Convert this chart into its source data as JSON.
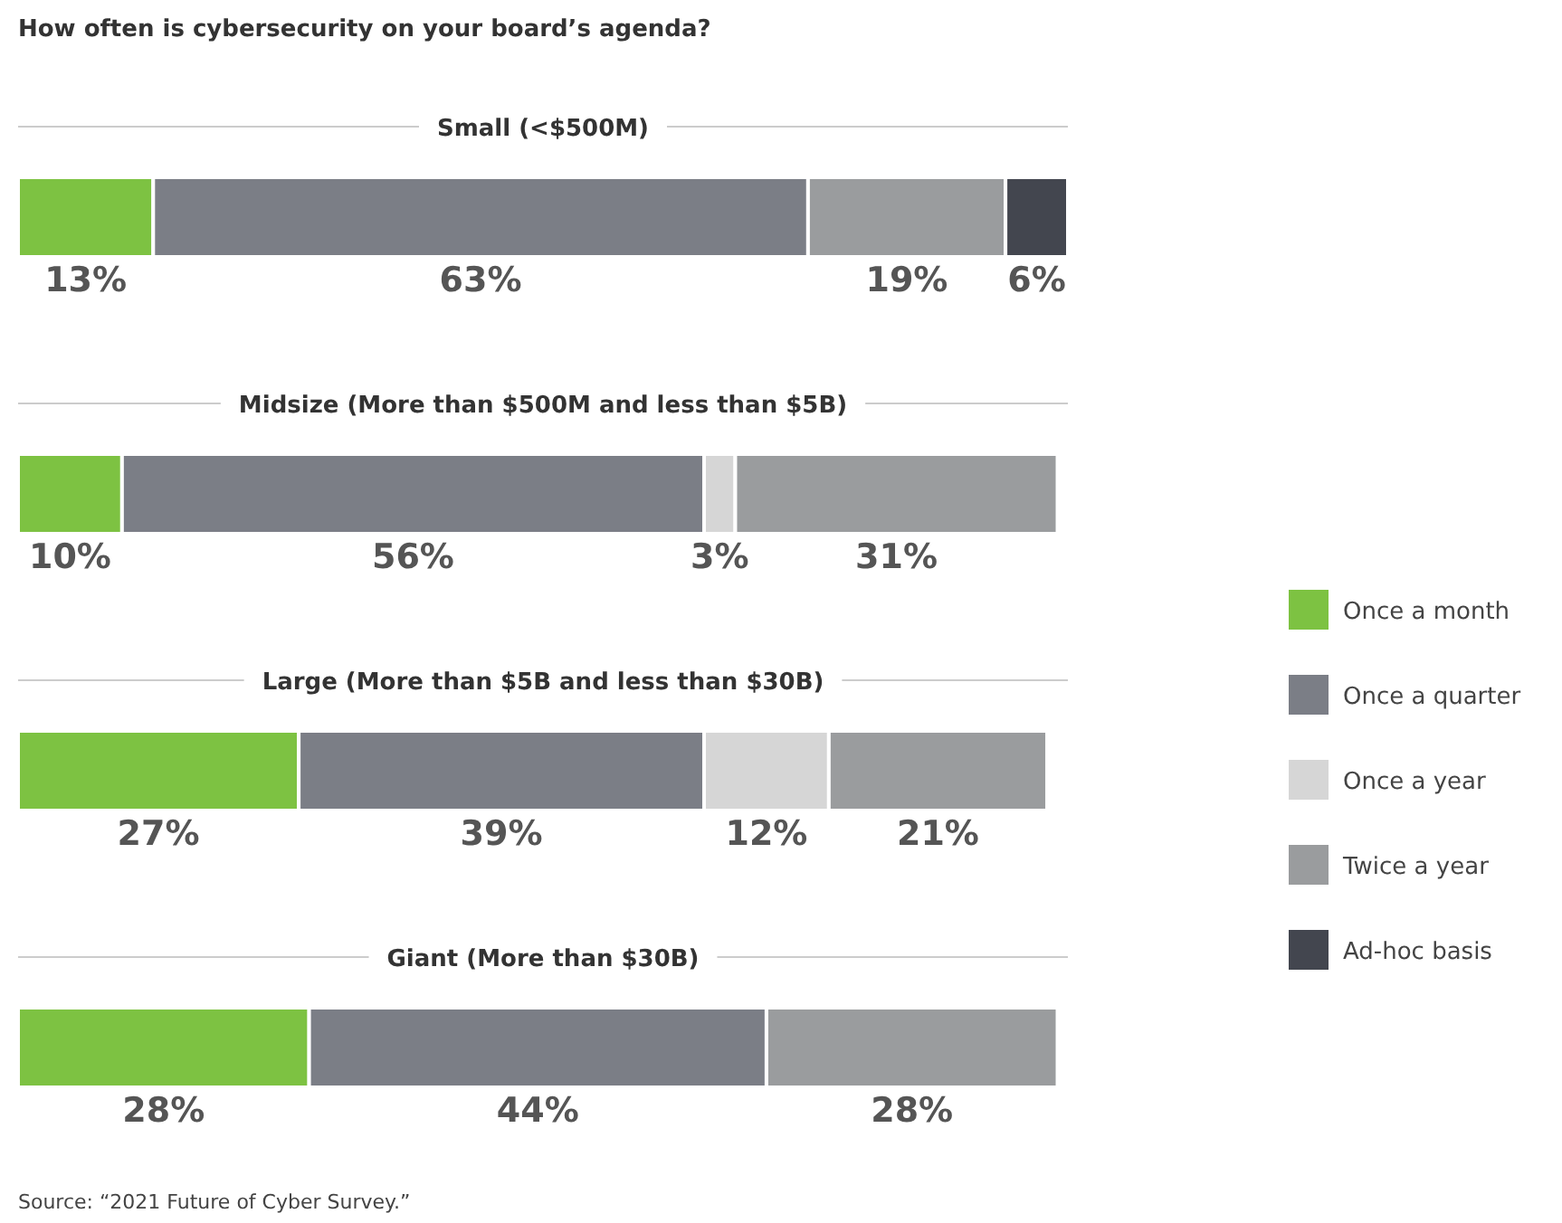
{
  "chart_data": {
    "type": "bar",
    "orientation": "horizontal",
    "stacked": true,
    "legend": "right",
    "title": "How often is cybersecurity on your board’s agenda?",
    "categories": [
      "Small (<$500M)",
      "Midsize (More than $500M and less than $5B)",
      "Large (More than $5B and less than $30B)",
      "Giant (More than $30B)"
    ],
    "series": [
      {
        "name": "Once a month",
        "color": "#7dc242",
        "values": [
          13,
          10,
          27,
          28
        ],
        "value_labels": [
          "13%",
          "10%",
          "27%",
          "28%"
        ]
      },
      {
        "name": "Once a quarter",
        "color": "#7b7e86",
        "values": [
          63,
          56,
          39,
          44
        ],
        "value_labels": [
          "63%",
          "56%",
          "39%",
          "44%"
        ]
      },
      {
        "name": "Once a year",
        "color": "#d6d6d6",
        "values": [
          null,
          3,
          12,
          null
        ],
        "value_labels": [
          null,
          "3%",
          "12%",
          null
        ]
      },
      {
        "name": "Twice a year",
        "color": "#9a9c9e",
        "values": [
          19,
          31,
          21,
          28
        ],
        "value_labels": [
          "19%",
          "31%",
          "21%",
          "28%"
        ]
      },
      {
        "name": "Ad-hoc basis",
        "color": "#43464f",
        "values": [
          6,
          null,
          null,
          null
        ],
        "value_labels": [
          "6%",
          null,
          null,
          null
        ]
      }
    ],
    "annotations": [
      "Source: “2021 Future of Cyber Survey.”"
    ]
  }
}
